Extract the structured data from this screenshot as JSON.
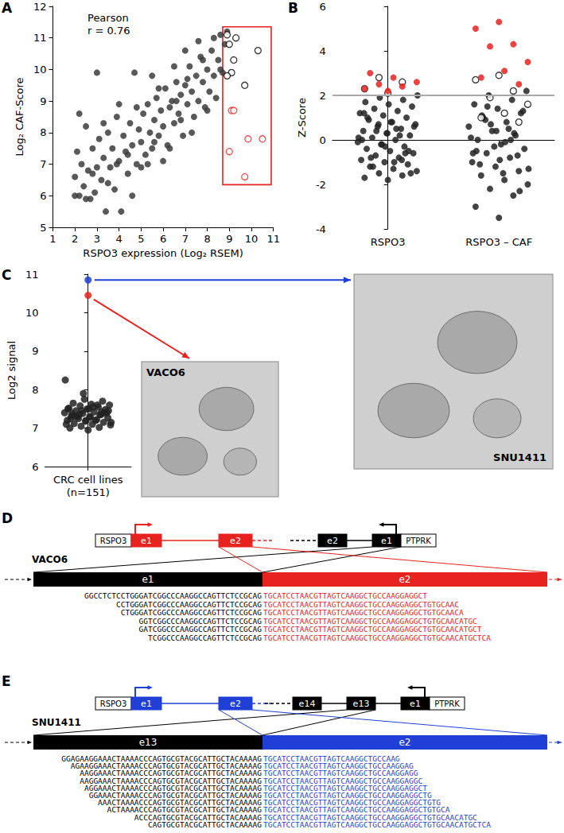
{
  "chart_data": [
    {
      "type": "scatter",
      "panel_label": "A",
      "annotation": "Pearson\nr = 0.76",
      "x_label": "RSPO3 expression (Log₂ RSEM)",
      "y_label": "Log₂ CAF-Score",
      "xlim": [
        1,
        11
      ],
      "xticks": [
        1,
        2,
        3,
        4,
        5,
        6,
        7,
        8,
        9,
        10,
        11
      ],
      "ylim": [
        5,
        12
      ],
      "yticks": [
        5,
        6,
        7,
        8,
        9,
        10,
        11,
        12
      ],
      "grid": false,
      "box": {
        "color": "#e8231f",
        "xlim": [
          8.7,
          10.9
        ],
        "ylim": [
          6.35,
          11.35
        ]
      },
      "series": [
        {
          "color": "#3c3c3c",
          "marker": "filled",
          "points": [
            [
              2.0,
              6.6
            ],
            [
              2.1,
              7.4
            ],
            [
              2.2,
              6.0
            ],
            [
              2.3,
              7.0
            ],
            [
              2.4,
              6.3
            ],
            [
              2.5,
              8.2
            ],
            [
              2.6,
              6.8
            ],
            [
              2.7,
              5.9
            ],
            [
              2.8,
              7.5
            ],
            [
              2.9,
              6.1
            ],
            [
              3.0,
              6.9
            ],
            [
              3.1,
              7.8
            ],
            [
              3.2,
              6.5
            ],
            [
              3.3,
              7.2
            ],
            [
              3.4,
              5.5
            ],
            [
              3.5,
              8.0
            ],
            [
              3.6,
              6.9
            ],
            [
              3.7,
              7.5
            ],
            [
              3.8,
              6.2
            ],
            [
              3.9,
              8.5
            ],
            [
              4.0,
              7.1
            ],
            [
              4.1,
              5.5
            ],
            [
              4.2,
              7.9
            ],
            [
              4.3,
              7.4
            ],
            [
              4.4,
              6.7
            ],
            [
              4.5,
              8.3
            ],
            [
              4.6,
              7.6
            ],
            [
              4.7,
              9.9
            ],
            [
              4.8,
              7.0
            ],
            [
              4.9,
              8.1
            ],
            [
              5.0,
              7.7
            ],
            [
              5.1,
              8.6
            ],
            [
              5.2,
              7.3
            ],
            [
              5.3,
              8.9
            ],
            [
              5.4,
              8.0
            ],
            [
              5.5,
              7.5
            ],
            [
              5.6,
              8.4
            ],
            [
              5.7,
              9.1
            ],
            [
              5.8,
              7.9
            ],
            [
              5.9,
              8.7
            ],
            [
              6.0,
              8.2
            ],
            [
              6.1,
              9.4
            ],
            [
              6.2,
              7.6
            ],
            [
              6.3,
              8.8
            ],
            [
              6.4,
              9.0
            ],
            [
              6.5,
              8.3
            ],
            [
              6.6,
              9.6
            ],
            [
              6.7,
              8.6
            ],
            [
              6.8,
              9.2
            ],
            [
              6.9,
              7.9
            ],
            [
              7.0,
              9.5
            ],
            [
              7.1,
              8.9
            ],
            [
              7.2,
              10.1
            ],
            [
              7.3,
              9.3
            ],
            [
              7.4,
              8.5
            ],
            [
              7.5,
              9.8
            ],
            [
              7.6,
              9.0
            ],
            [
              7.7,
              10.4
            ],
            [
              7.8,
              9.6
            ],
            [
              7.9,
              8.8
            ],
            [
              8.0,
              10.0
            ],
            [
              8.1,
              9.3
            ],
            [
              8.2,
              10.6
            ],
            [
              8.3,
              9.8
            ],
            [
              8.4,
              9.1
            ],
            [
              8.5,
              10.3
            ],
            [
              8.6,
              11.1
            ],
            [
              8.7,
              9.9
            ],
            [
              8.8,
              10.8
            ],
            [
              8.9,
              11.2
            ],
            [
              3.0,
              9.9
            ],
            [
              2.2,
              8.6
            ],
            [
              2.5,
              5.9
            ],
            [
              4.6,
              6.0
            ],
            [
              5.5,
              9.8
            ],
            [
              6.5,
              10.1
            ],
            [
              7.0,
              10.6
            ],
            [
              7.6,
              10.9
            ],
            [
              8.3,
              11.0
            ],
            [
              5.0,
              6.9
            ],
            [
              6.0,
              7.1
            ],
            [
              3.5,
              6.4
            ],
            [
              4.0,
              8.9
            ],
            [
              7.3,
              8.0
            ],
            [
              8.0,
              8.7
            ],
            [
              2.8,
              6.7
            ],
            [
              4.4,
              7.3
            ],
            [
              5.8,
              9.4
            ],
            [
              6.3,
              7.5
            ],
            [
              7.8,
              10.3
            ],
            [
              3.3,
              8.3
            ],
            [
              4.8,
              8.8
            ],
            [
              6.8,
              8.4
            ],
            [
              5.3,
              7.0
            ],
            [
              2.0,
              6.0
            ],
            [
              3.9,
              7.0
            ],
            [
              6.6,
              9.0
            ],
            [
              8.6,
              10.0
            ],
            [
              7.1,
              9.7
            ],
            [
              5.6,
              7.7
            ]
          ]
        },
        {
          "color": "#000000",
          "marker": "open",
          "points": [
            [
              8.9,
              11.1
            ],
            [
              9.0,
              10.8
            ],
            [
              9.2,
              10.3
            ],
            [
              9.3,
              11.0
            ],
            [
              9.1,
              9.9
            ],
            [
              8.9,
              9.8
            ],
            [
              9.7,
              9.5
            ],
            [
              10.3,
              10.6
            ]
          ]
        },
        {
          "color": "#e8231f",
          "marker": "open",
          "points": [
            [
              9.1,
              8.7
            ],
            [
              9.2,
              8.7
            ],
            [
              9.85,
              7.8
            ],
            [
              10.5,
              7.8
            ],
            [
              9.0,
              7.4
            ],
            [
              9.7,
              6.6
            ]
          ]
        }
      ]
    },
    {
      "type": "strip",
      "panel_label": "B",
      "y_label": "Z-Score",
      "categories": [
        "RSPO3",
        "RSPO3 – CAF"
      ],
      "ylim": [
        -4,
        6
      ],
      "yticks": [
        -4,
        -2,
        0,
        2,
        4,
        6
      ],
      "grid": false,
      "threshold": 2,
      "threshold_color": "#aaaaaa",
      "series": [
        {
          "color": "#222222",
          "marker": "filled",
          "values": [
            [
              -1.8,
              -1.7,
              -1.6,
              -1.5,
              -1.4,
              -1.3,
              -1.2,
              -1.1,
              -1.0,
              -0.9,
              -0.8,
              -0.7,
              -0.6,
              -0.5,
              -0.4,
              -0.3,
              -0.2,
              -0.1,
              0,
              0.1,
              0.2,
              0.3,
              0.4,
              0.5,
              0.6,
              0.7,
              0.8,
              0.9,
              1.0,
              1.1,
              1.2,
              1.3,
              1.4,
              1.5,
              1.6,
              1.7,
              1.8,
              1.9,
              2.0,
              -1.0,
              -0.8,
              -0.5,
              -0.3,
              0,
              0.2,
              0.4,
              0.6,
              0.8,
              1.0,
              -0.6,
              -0.2,
              0.1,
              0.5,
              -1.2,
              -1.5,
              0.3,
              1.2,
              -0.9,
              0.7
            ],
            [
              -3.5,
              -3.0,
              -2.5,
              -2.2,
              -2.0,
              -1.8,
              -1.6,
              -1.4,
              -1.2,
              -1.0,
              -0.8,
              -0.6,
              -0.4,
              -0.2,
              0,
              0.2,
              0.4,
              0.6,
              0.8,
              1.0,
              1.2,
              1.4,
              1.6,
              1.8,
              2.0,
              2.2,
              -1.5,
              -1.1,
              -0.7,
              -0.3,
              0.1,
              0.5,
              0.9,
              1.3,
              -0.9,
              -0.5,
              0.3,
              0.7,
              -1.3,
              -0.1,
              1.1,
              -2.3,
              0.4,
              -0.6,
              0.0,
              1.5
            ]
          ]
        },
        {
          "color": "#000000",
          "marker": "open",
          "values": [
            [
              2.1,
              2.3,
              2.6,
              2.8
            ],
            [
              2.9,
              2.7,
              2.2,
              1.9,
              1.6,
              1.2,
              1.0,
              0.8
            ]
          ]
        },
        {
          "color": "#e8231f",
          "marker": "filled",
          "values": [
            [
              2.2,
              2.3,
              2.4,
              2.5,
              2.6,
              2.8,
              3.0
            ],
            [
              5.3,
              5.0,
              4.3,
              4.2,
              3.5,
              3.1,
              2.8,
              2.5
            ]
          ]
        }
      ]
    },
    {
      "type": "strip",
      "panel_label": "C",
      "y_label": "Log2 signal",
      "categories": [
        "CRC cell lines\n(n=151)"
      ],
      "ylim": [
        6,
        11
      ],
      "yticks": [
        6,
        7,
        8,
        9,
        10,
        11
      ],
      "grid": false,
      "series": [
        {
          "color": "#222222",
          "marker": "filled",
          "values": [
            [
              6.95,
              7.0,
              7.02,
              7.05,
              7.08,
              7.1,
              7.12,
              7.15,
              7.18,
              7.2,
              7.22,
              7.25,
              7.27,
              7.3,
              7.32,
              7.35,
              7.38,
              7.4,
              7.42,
              7.45,
              7.48,
              7.5,
              7.52,
              7.55,
              7.58,
              7.6,
              7.62,
              7.65,
              7.7,
              7.75,
              7.1,
              7.2,
              7.3,
              7.4,
              7.5,
              7.25,
              7.35,
              7.45,
              7.15,
              7.55,
              7.3,
              7.4,
              7.2,
              7.5,
              7.6,
              7.35,
              7.45,
              7.28,
              7.38,
              7.42,
              7.9,
              8.25
            ]
          ]
        },
        {
          "name": "VACO6",
          "color": "#e8231f",
          "marker": "filled",
          "values": [
            [
              10.45
            ]
          ]
        },
        {
          "name": "SNU1411",
          "color": "#1f3fd6",
          "marker": "filled",
          "values": [
            [
              10.85
            ]
          ]
        }
      ]
    }
  ],
  "diagrams": [
    {
      "panel_label": "D",
      "sample": "VACO6",
      "color": "#e8231f",
      "left_gene": {
        "name": "RSPO3",
        "exons": [
          "e1",
          "e2"
        ]
      },
      "right_gene": {
        "name": "PTPRK",
        "exons": [
          "e2",
          "e1"
        ]
      },
      "fusion": [
        "e1",
        "e2"
      ],
      "reads": [
        [
          "GGCCTCTCCTGGGATCGGCCCAAGGCCAGTTCTCCGCAG",
          "TGCATCCTAACGTTAGTCAAGGCTGCCAAGGAGGCT"
        ],
        [
          "CCTGGGATCGGCCCAAGGCCAGTTCTCCGCAG",
          "TGCATCCTAACGTTAGTCAAGGCTGCCAAGGAGGCTGTGCAAC"
        ],
        [
          "CTGGGATCGGCCCAAGGCCAGTTCTCCGCAG",
          "TGCATCCTAACGTTAGTCAAGGCTGCCAAGGAGGCTGTGCAACA"
        ],
        [
          "GGTCGGCCCAAGGCCAGTTCTCCGCAG",
          "TGCATCCTAACGTTAGTCAAGGCTGCCAAGGAGGCTGTGCAACATGC"
        ],
        [
          "GATCGGCCCAAGGCCAGTTCTCCGCAG",
          "TGCATCCTAACGTTAGTCAAGGCTGCCAAGGAGGCTGTGCAACATGCT"
        ],
        [
          "TCGGCCCAAGGCCAGTTCTCCGCAG",
          "TGCATCCTAACGTTAGTCAAGGCTGCCAAGGAGGCTGTGCAACATGCTCA"
        ]
      ]
    },
    {
      "panel_label": "E",
      "sample": "SNU1411",
      "color": "#1f3fd6",
      "left_gene": {
        "name": "RSPO3",
        "exons": [
          "e1",
          "e2"
        ]
      },
      "right_gene": {
        "name": "PTPRK",
        "exons": [
          "e14",
          "e13",
          "e1"
        ]
      },
      "fusion": [
        "e13",
        "e2"
      ],
      "reads": [
        [
          "GGAGAAGGAAACTAAAACCCAGTGCGTACGCATTGCTACAAAAG",
          "TGCATCCTAACGTTAGTCAAGGCTGCCAAG"
        ],
        [
          "AGAAGGAAACTAAAACCCAGTGCGTACGCATTGCTACAAAAG",
          "TGCATCCTAACGTTAGTCAAGGCTGCCAAGGAG"
        ],
        [
          "AAGGAAACTAAAACCCAGTGCGTACGCATTGCTACAAAAG",
          "TGCATCCTAACGTTAGTCAAGGCTGCCAAGGAGG"
        ],
        [
          "AAGGAAACTAAAACCCAGTGCGTACGCATTGCTACAAAAG",
          "TGCATCCTAACGTTAGTCAAGGCTGCCAAGGAGGC"
        ],
        [
          "AGGAAACTAAAACCCAGTGCGTACGCATTGCTACAAAAG",
          "TGCATCCTAACGTTAGTCAAGGCTGCCAAGGAGGCT"
        ],
        [
          "GGAAACTAAAACCCAGTGCGTACGCATTGCTACAAAAG",
          "TGCATCCTAACGTTAGTCAAGGCTGCCAAGGAGGCTG"
        ],
        [
          "AAACTAAAACCCAGTGCGTACGCATTGCTACAAAAG",
          "TGCATCCTAACGTTAGTCAAGGCTGCCAAGGAGGCTGTG"
        ],
        [
          "ACTAAAACCCAGTGCGTACGCATTGCTACAAAAG",
          "TGCATCCTAACGTTAGTCAAGGCTGCCAAGGAGGCTGTGCA"
        ],
        [
          "ACCCAGTGCGTACGCATTGCTACAAAAG",
          "TGCATCCTAACGTTAGTCAAGGCTGCCAAGGAGGCTGTGCAACATGC"
        ],
        [
          "CAGTGCGTACGCATTGCTACAAAAG",
          "TGCATCCTAACGTTAGTCAAGGCTGCCAAGGAGGCTGTGCAACATGCTCA"
        ]
      ]
    }
  ]
}
